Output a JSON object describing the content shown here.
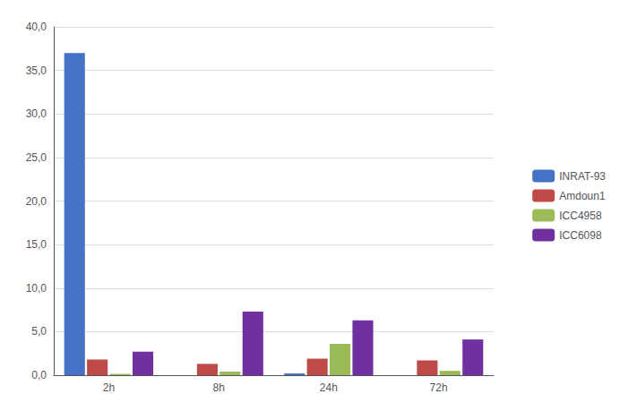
{
  "chart_data": {
    "type": "bar",
    "categories": [
      "2h",
      "8h",
      "24h",
      "72h"
    ],
    "series": [
      {
        "name": "INRAT-93",
        "color": "#4472C4",
        "values": [
          37.0,
          0.0,
          0.2,
          0.0
        ]
      },
      {
        "name": "Amdoun1",
        "color": "#BE4B48",
        "values": [
          1.8,
          1.3,
          1.9,
          1.7
        ]
      },
      {
        "name": "ICC4958",
        "color": "#9BBB59",
        "values": [
          0.15,
          0.4,
          3.6,
          0.5
        ]
      },
      {
        "name": "ICC6098",
        "color": "#7030A0",
        "values": [
          2.7,
          7.3,
          6.3,
          4.1
        ]
      }
    ],
    "ylim": [
      0,
      40
    ],
    "yticks": [
      {
        "value": 0,
        "label": "0,0"
      },
      {
        "value": 5,
        "label": "5,0"
      },
      {
        "value": 10,
        "label": "10,0"
      },
      {
        "value": 15,
        "label": "15,0"
      },
      {
        "value": 20,
        "label": "20,0"
      },
      {
        "value": 25,
        "label": "25,0"
      },
      {
        "value": 30,
        "label": "30,0"
      },
      {
        "value": 35,
        "label": "35,0"
      },
      {
        "value": 40,
        "label": "40,0"
      }
    ],
    "grid": true,
    "legend": "right"
  }
}
